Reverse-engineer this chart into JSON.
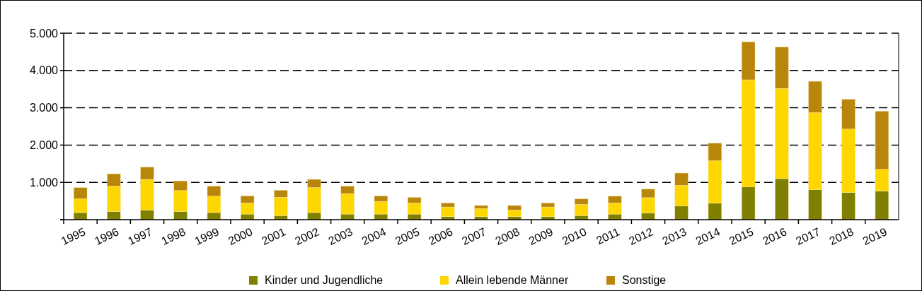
{
  "chart_data": {
    "type": "bar",
    "stacked": true,
    "categories": [
      "1995",
      "1996",
      "1997",
      "1998",
      "1999",
      "2000",
      "2001",
      "2002",
      "2003",
      "2004",
      "2005",
      "2006",
      "2007",
      "2008",
      "2009",
      "2010",
      "2011",
      "2012",
      "2013",
      "2014",
      "2015",
      "2016",
      "2017",
      "2018",
      "2019"
    ],
    "series": [
      {
        "name": "Kinder und Jugendliche",
        "color": "#808000",
        "values": [
          190,
          220,
          260,
          220,
          190,
          150,
          110,
          190,
          150,
          150,
          150,
          80,
          80,
          80,
          80,
          110,
          150,
          180,
          370,
          440,
          880,
          1100,
          800,
          730,
          770
        ]
      },
      {
        "name": "Allein lebende Männer",
        "color": "#ffd700",
        "values": [
          370,
          680,
          820,
          560,
          440,
          300,
          490,
          670,
          550,
          340,
          300,
          260,
          220,
          180,
          260,
          300,
          300,
          410,
          550,
          1140,
          2870,
          2420,
          2070,
          1700,
          580
        ]
      },
      {
        "name": "Sonstige",
        "color": "#b8860b",
        "values": [
          300,
          330,
          330,
          260,
          270,
          190,
          190,
          220,
          200,
          150,
          150,
          110,
          80,
          120,
          110,
          150,
          180,
          230,
          330,
          470,
          1020,
          1110,
          840,
          800,
          1560
        ]
      }
    ],
    "ylim": [
      0,
      5000
    ],
    "yticks": [
      {
        "value": 0,
        "label": null
      },
      {
        "value": 1000,
        "label": "1.000"
      },
      {
        "value": 2000,
        "label": "2.000"
      },
      {
        "value": 3000,
        "label": "3.000"
      },
      {
        "value": 4000,
        "label": "4.000"
      },
      {
        "value": 5000,
        "label": "5.000"
      }
    ],
    "grid": "y",
    "legend": "bottom"
  }
}
